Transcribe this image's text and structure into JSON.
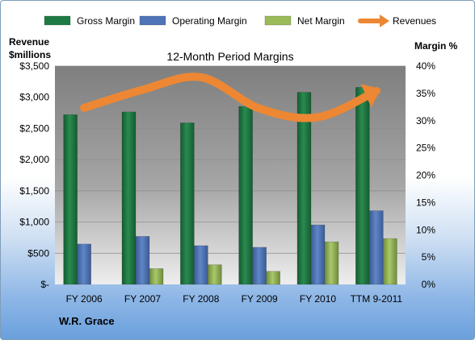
{
  "chart_data": {
    "type": "bar",
    "title": "12-Month Period Margins",
    "company": "W.R. Grace",
    "y_left_label_line1": "Revenue",
    "y_left_label_line2": "$millions",
    "y_right_label": "Margin %",
    "ylim_left": [
      0,
      3500
    ],
    "ylim_right": [
      0,
      40
    ],
    "y_left_ticks": [
      "$-",
      "$500",
      "$1,000",
      "$1,500",
      "$2,000",
      "$2,500",
      "$3,000",
      "$3,500"
    ],
    "y_right_ticks": [
      "0%",
      "5%",
      "10%",
      "15%",
      "20%",
      "25%",
      "30%",
      "35%",
      "40%"
    ],
    "categories": [
      "FY 2006",
      "FY 2007",
      "FY 2008",
      "FY 2009",
      "FY 2010",
      "TTM 9-2011"
    ],
    "series": [
      {
        "name": "Gross Margin",
        "axis": "right",
        "color": "#1e7a43",
        "values": [
          31.1,
          31.6,
          29.6,
          32.6,
          35.2,
          36.1
        ]
      },
      {
        "name": "Operating Margin",
        "axis": "right",
        "color": "#4f74b8",
        "values": [
          7.4,
          8.8,
          7.1,
          6.8,
          10.9,
          13.5
        ]
      },
      {
        "name": "Net Margin",
        "axis": "right",
        "color": "#9bbb59",
        "values": [
          0.0,
          2.9,
          3.6,
          2.4,
          7.8,
          8.4
        ]
      },
      {
        "name": "Revenues",
        "axis": "left",
        "type": "line",
        "color": "#ed8733",
        "values": [
          2830,
          3120,
          3320,
          2820,
          2680,
          3100
        ]
      }
    ],
    "legend_position": "top",
    "grid": true
  }
}
